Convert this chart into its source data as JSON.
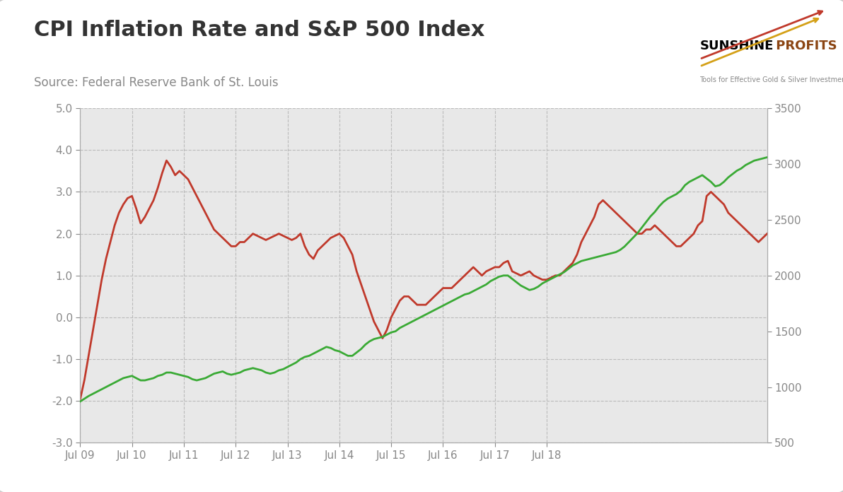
{
  "title": "CPI Inflation Rate and S&P 500 Index",
  "source": "Source: Federal Reserve Bank of St. Louis",
  "title_fontsize": 22,
  "source_fontsize": 12,
  "plot_bg_color": "#e8e8e8",
  "left_ylim": [
    -3.0,
    5.0
  ],
  "right_ylim": [
    500,
    3500
  ],
  "left_yticks": [
    -3.0,
    -2.0,
    -1.0,
    0.0,
    1.0,
    2.0,
    3.0,
    4.0,
    5.0
  ],
  "right_yticks": [
    500,
    1000,
    1500,
    2000,
    2500,
    3000,
    3500
  ],
  "cpi_color": "#c0392b",
  "sp500_color": "#3aaa35",
  "line_width": 2.0,
  "x_tick_labels": [
    "Jul 09",
    "Jul 10",
    "Jul 11",
    "Jul 12",
    "Jul 13",
    "Jul 14",
    "Jul 15",
    "Jul 16",
    "Jul 17",
    "Jul 18"
  ],
  "cpi_data": [
    -1.97,
    -1.5,
    -0.9,
    -0.3,
    0.3,
    0.9,
    1.4,
    1.8,
    2.2,
    2.5,
    2.7,
    2.85,
    2.9,
    2.6,
    2.25,
    2.4,
    2.6,
    2.8,
    3.1,
    3.45,
    3.75,
    3.6,
    3.4,
    3.5,
    3.4,
    3.3,
    3.1,
    2.9,
    2.7,
    2.5,
    2.3,
    2.1,
    2.0,
    1.9,
    1.8,
    1.7,
    1.7,
    1.8,
    1.8,
    1.9,
    2.0,
    1.95,
    1.9,
    1.85,
    1.9,
    1.95,
    2.0,
    1.95,
    1.9,
    1.85,
    1.9,
    2.0,
    1.7,
    1.5,
    1.4,
    1.6,
    1.7,
    1.8,
    1.9,
    1.95,
    2.0,
    1.9,
    1.7,
    1.5,
    1.1,
    0.8,
    0.5,
    0.2,
    -0.1,
    -0.3,
    -0.5,
    -0.3,
    0.0,
    0.2,
    0.4,
    0.5,
    0.5,
    0.4,
    0.3,
    0.3,
    0.3,
    0.4,
    0.5,
    0.6,
    0.7,
    0.7,
    0.7,
    0.8,
    0.9,
    1.0,
    1.1,
    1.2,
    1.1,
    1.0,
    1.1,
    1.15,
    1.2,
    1.2,
    1.3,
    1.35,
    1.1,
    1.05,
    1.0,
    1.05,
    1.1,
    1.0,
    0.95,
    0.9,
    0.9,
    0.95,
    1.0,
    1.0,
    1.1,
    1.2,
    1.3,
    1.5,
    1.8,
    2.0,
    2.2,
    2.4,
    2.7,
    2.8,
    2.7,
    2.6,
    2.5,
    2.4,
    2.3,
    2.2,
    2.1,
    2.0,
    2.0,
    2.1,
    2.1,
    2.2,
    2.1,
    2.0,
    1.9,
    1.8,
    1.7,
    1.7,
    1.8,
    1.9,
    2.0,
    2.2,
    2.3,
    2.9,
    3.0,
    2.9,
    2.8,
    2.7,
    2.5,
    2.4,
    2.3,
    2.2,
    2.1,
    2.0,
    1.9,
    1.8,
    1.9,
    2.0
  ],
  "sp500_data": [
    870,
    895,
    920,
    940,
    960,
    980,
    1000,
    1020,
    1040,
    1060,
    1080,
    1090,
    1100,
    1080,
    1060,
    1060,
    1070,
    1080,
    1100,
    1110,
    1130,
    1130,
    1120,
    1110,
    1100,
    1090,
    1070,
    1060,
    1070,
    1080,
    1100,
    1120,
    1130,
    1140,
    1120,
    1110,
    1120,
    1130,
    1150,
    1160,
    1170,
    1160,
    1150,
    1130,
    1120,
    1130,
    1150,
    1160,
    1180,
    1200,
    1220,
    1250,
    1270,
    1280,
    1300,
    1320,
    1340,
    1360,
    1350,
    1330,
    1320,
    1300,
    1280,
    1280,
    1310,
    1340,
    1380,
    1410,
    1430,
    1440,
    1450,
    1470,
    1490,
    1500,
    1530,
    1550,
    1570,
    1590,
    1610,
    1630,
    1650,
    1670,
    1690,
    1710,
    1730,
    1750,
    1770,
    1790,
    1810,
    1830,
    1840,
    1860,
    1880,
    1900,
    1920,
    1950,
    1970,
    1990,
    2000,
    2000,
    1970,
    1940,
    1910,
    1890,
    1870,
    1880,
    1900,
    1930,
    1950,
    1970,
    1990,
    2010,
    2030,
    2060,
    2090,
    2110,
    2130,
    2140,
    2150,
    2160,
    2170,
    2180,
    2190,
    2200,
    2210,
    2230,
    2260,
    2300,
    2340,
    2380,
    2430,
    2480,
    2530,
    2570,
    2620,
    2660,
    2690,
    2710,
    2730,
    2760,
    2810,
    2840,
    2860,
    2880,
    2900,
    2870,
    2840,
    2800,
    2810,
    2840,
    2880,
    2910,
    2940,
    2960,
    2990,
    3010,
    3030,
    3040,
    3050,
    3060
  ]
}
